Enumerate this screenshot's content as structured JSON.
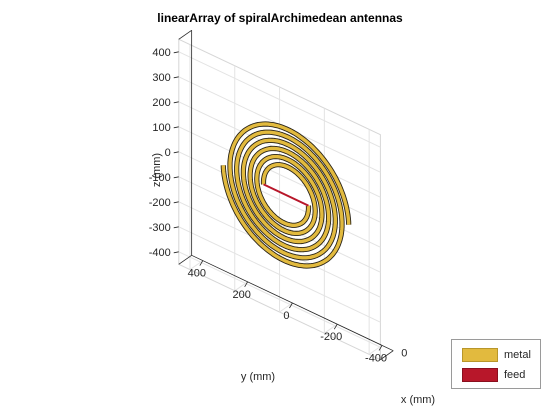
{
  "chart_data": {
    "type": "3d-antenna-geometry",
    "title": "linearArray of spiralArchimedean antennas",
    "xlabel": "x (mm)",
    "ylabel": "y (mm)",
    "zlabel": "z (mm)",
    "z_ticks": [
      "400",
      "300",
      "200",
      "100",
      "0",
      "-100",
      "-200",
      "-300",
      "-400"
    ],
    "y_ticks": [
      "400",
      "200",
      "0",
      "-200",
      "-400"
    ],
    "x_ticks": [
      "0"
    ],
    "zlim": [
      -450,
      450
    ],
    "ylim": [
      -450,
      450
    ],
    "grid": true,
    "legend_position": "bottom-right",
    "legend": [
      {
        "label": "metal",
        "color": "#e2ba3e"
      },
      {
        "label": "feed",
        "color": "#b8172a"
      }
    ],
    "series": [
      {
        "name": "metal",
        "y_center_mm": 0,
        "outer_radius_mm": 280,
        "inner_radius_mm": 100,
        "turns": 3
      }
    ]
  }
}
